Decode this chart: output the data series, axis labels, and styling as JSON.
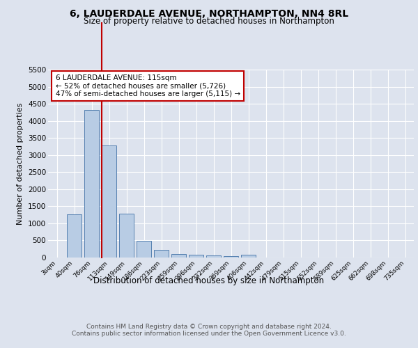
{
  "title": "6, LAUDERDALE AVENUE, NORTHAMPTON, NN4 8RL",
  "subtitle": "Size of property relative to detached houses in Northampton",
  "xlabel": "Distribution of detached houses by size in Northampton",
  "ylabel": "Number of detached properties",
  "categories": [
    "3sqm",
    "40sqm",
    "76sqm",
    "113sqm",
    "149sqm",
    "186sqm",
    "223sqm",
    "259sqm",
    "296sqm",
    "332sqm",
    "369sqm",
    "406sqm",
    "442sqm",
    "479sqm",
    "515sqm",
    "552sqm",
    "589sqm",
    "625sqm",
    "662sqm",
    "698sqm",
    "735sqm"
  ],
  "values": [
    0,
    1270,
    4310,
    3280,
    1280,
    480,
    220,
    100,
    75,
    60,
    50,
    75,
    0,
    0,
    0,
    0,
    0,
    0,
    0,
    0,
    0
  ],
  "bar_color": "#b8cce4",
  "bar_edge_color": "#5580b0",
  "property_line_color": "#c00000",
  "ylim": [
    0,
    5500
  ],
  "yticks": [
    0,
    500,
    1000,
    1500,
    2000,
    2500,
    3000,
    3500,
    4000,
    4500,
    5000,
    5500
  ],
  "annotation_text": "6 LAUDERDALE AVENUE: 115sqm\n← 52% of detached houses are smaller (5,726)\n47% of semi-detached houses are larger (5,115) →",
  "annotation_box_color": "#ffffff",
  "annotation_box_edge": "#c00000",
  "bg_color": "#dde3ee",
  "plot_bg_color": "#dde3ee",
  "footer_text": "Contains HM Land Registry data © Crown copyright and database right 2024.\nContains public sector information licensed under the Open Government Licence v3.0.",
  "grid_color": "#ffffff",
  "property_bar_index": 3
}
